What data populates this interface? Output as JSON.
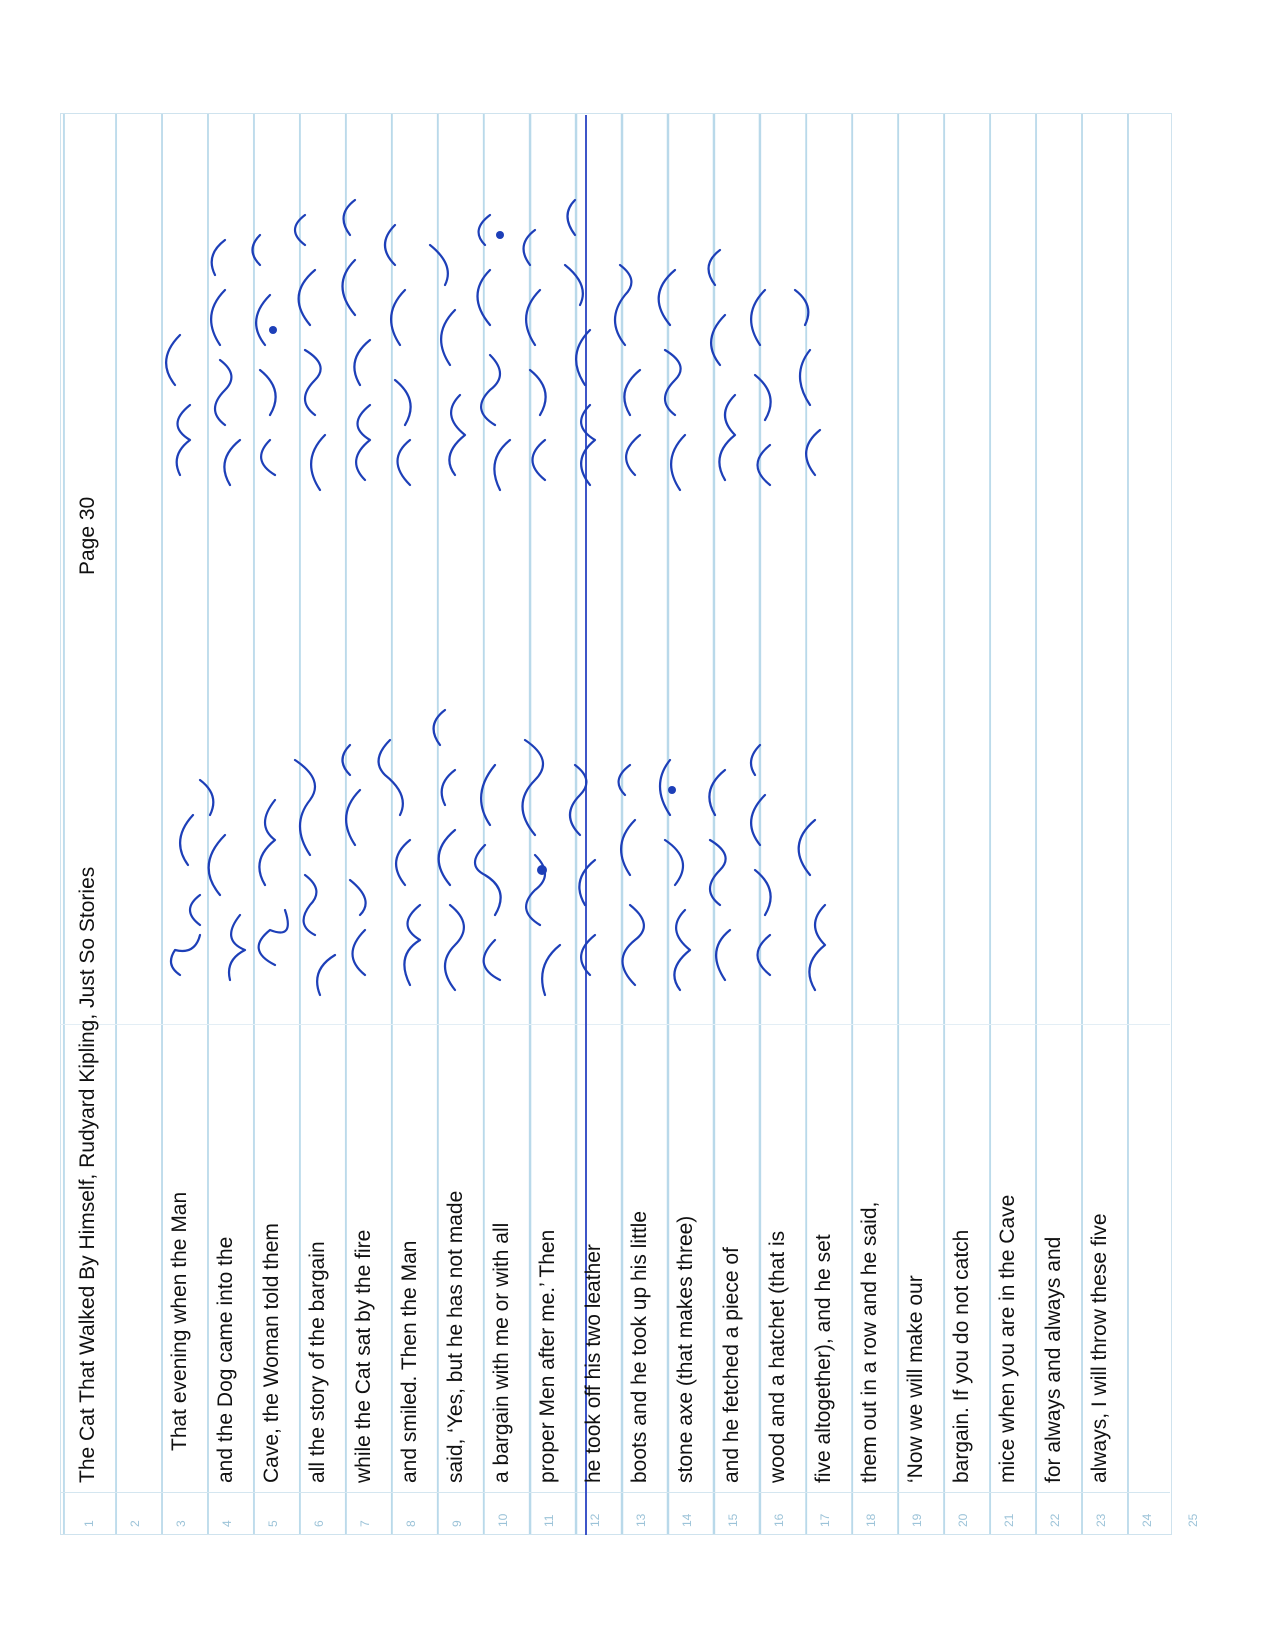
{
  "page": {
    "title": "The Cat That Walked By Himself, Rudyard Kipling, Just So Stories",
    "page_number": "Page 30"
  },
  "lines": [
    {
      "num": "1",
      "text": ""
    },
    {
      "num": "2",
      "text": ""
    },
    {
      "num": "3",
      "text": "That evening when the Man"
    },
    {
      "num": "4",
      "text": "and the Dog came into the"
    },
    {
      "num": "5",
      "text": "Cave, the Woman told them"
    },
    {
      "num": "6",
      "text": "all the story of the bargain"
    },
    {
      "num": "7",
      "text": "while the Cat sat by the fire"
    },
    {
      "num": "8",
      "text": "and smiled. Then the Man"
    },
    {
      "num": "9",
      "text": "said, ‘Yes, but he has not made"
    },
    {
      "num": "10",
      "text": "a bargain with me or with all"
    },
    {
      "num": "11",
      "text": "proper Men after me.’ Then"
    },
    {
      "num": "12",
      "text": "he took off his two leather"
    },
    {
      "num": "13",
      "text": "boots and he took up his little"
    },
    {
      "num": "14",
      "text": "stone axe (that makes three)"
    },
    {
      "num": "15",
      "text": "and he fetched a piece of"
    },
    {
      "num": "16",
      "text": "wood and a hatchet (that is"
    },
    {
      "num": "17",
      "text": "five altogether), and he set"
    },
    {
      "num": "18",
      "text": "them out in a row and he said,"
    },
    {
      "num": "19",
      "text": "‘Now we will make our"
    },
    {
      "num": "20",
      "text": "bargain. If you do not catch"
    },
    {
      "num": "21",
      "text": "mice when you are in the Cave"
    },
    {
      "num": "22",
      "text": "for always and always and"
    },
    {
      "num": "23",
      "text": "always, I will throw these five"
    },
    {
      "num": "24",
      "text": ""
    },
    {
      "num": "25",
      "text": ""
    }
  ],
  "colors": {
    "ink": "#1d3fb8",
    "rule": "#b9d9ea",
    "line_number": "#9cc3d8"
  }
}
